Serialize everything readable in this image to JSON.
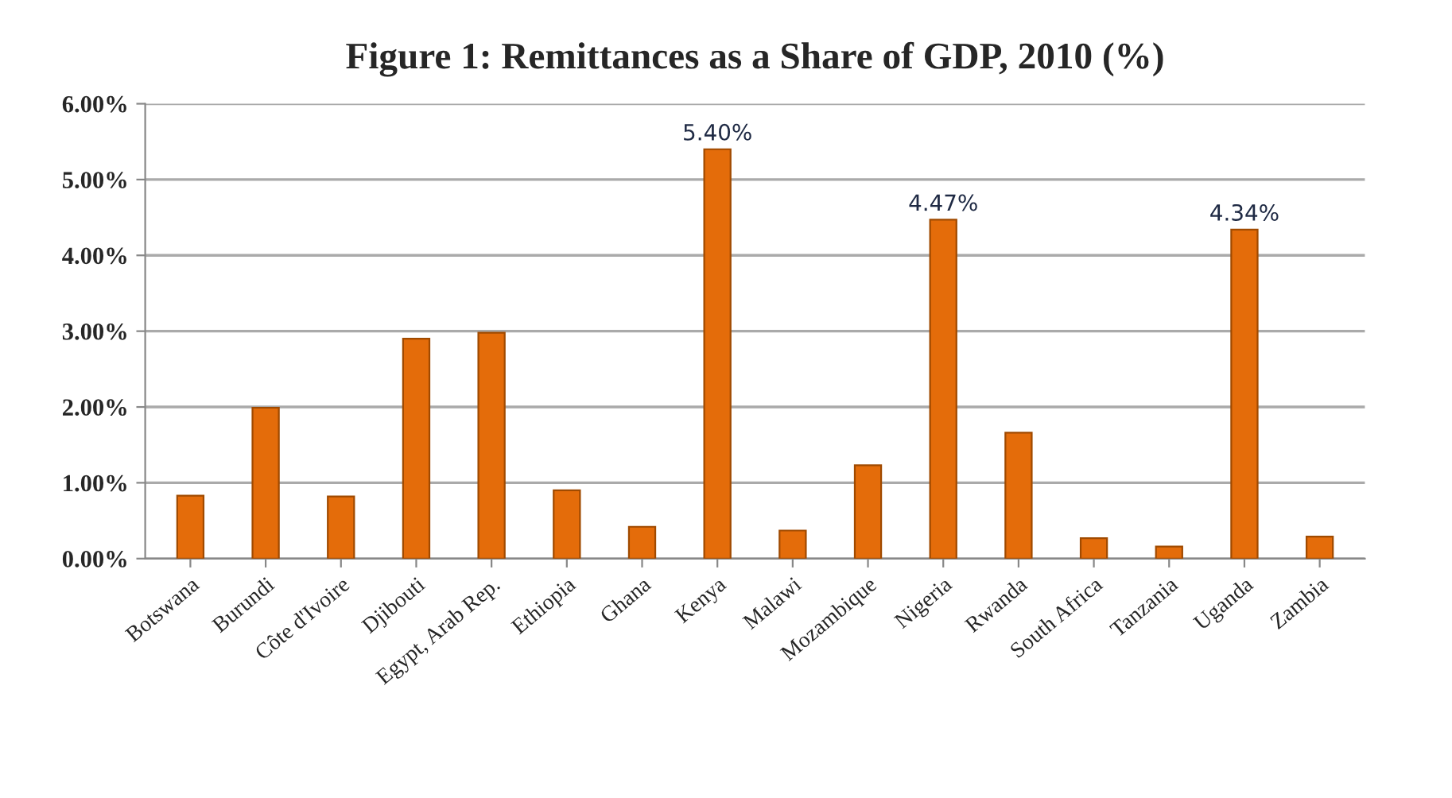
{
  "chart_data": {
    "type": "bar",
    "title": "Figure 1: Remittances as a Share of GDP, 2010 (%)",
    "categories": [
      "Botswana",
      "Burundi",
      "Côte d'Ivoire",
      "Djibouti",
      "Egypt, Arab Rep.",
      "Ethiopia",
      "Ghana",
      "Kenya",
      "Malawi",
      "Mozambique",
      "Nigeria",
      "Rwanda",
      "South Africa",
      "Tanzania",
      "Uganda",
      "Zambia"
    ],
    "values": [
      0.83,
      1.99,
      0.82,
      2.9,
      2.98,
      0.9,
      0.42,
      5.4,
      0.37,
      1.23,
      4.47,
      1.66,
      0.27,
      0.16,
      4.34,
      0.29
    ],
    "value_labels": [
      null,
      null,
      null,
      null,
      null,
      null,
      null,
      "5.40%",
      null,
      null,
      "4.47%",
      null,
      null,
      null,
      "4.34%",
      null
    ],
    "color": "#e46c0a",
    "ylim": [
      0,
      6
    ],
    "yticks": [
      {
        "value": 0,
        "label": "0.00%"
      },
      {
        "value": 1,
        "label": "1.00%"
      },
      {
        "value": 2,
        "label": "2.00%"
      },
      {
        "value": 3,
        "label": "3.00%"
      },
      {
        "value": 4,
        "label": "4.00%"
      },
      {
        "value": 5,
        "label": "5.00%"
      },
      {
        "value": 6,
        "label": "6.00%"
      }
    ],
    "grid": "y"
  }
}
